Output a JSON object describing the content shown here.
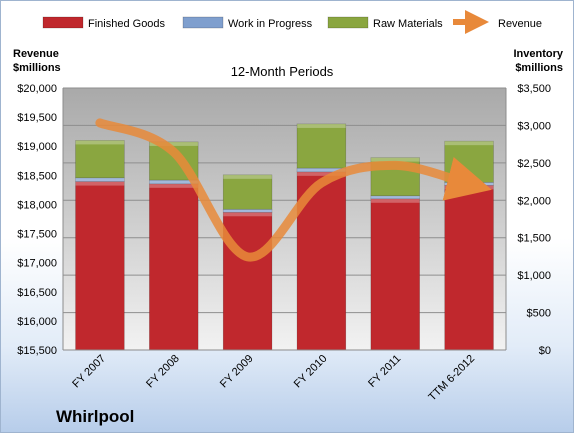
{
  "chart_data": {
    "type": "bar",
    "stacked": true,
    "title": "12-Month Periods",
    "company": "Whirlpool",
    "categories": [
      "FY 2007",
      "FY 2008",
      "FY 2009",
      "FY 2010",
      "FY 2011",
      "TTM 6-2012"
    ],
    "left_axis": {
      "label_line1": "Revenue",
      "label_line2": "$millions",
      "ylim": [
        15500,
        20000
      ],
      "ticks": [
        "$15,500",
        "$16,000",
        "$16,500",
        "$17,000",
        "$17,500",
        "$18,000",
        "$18,500",
        "$19,000",
        "$19,500",
        "$20,000"
      ]
    },
    "right_axis": {
      "label_line1": "Inventory",
      "label_line2": "$millions",
      "ylim": [
        0,
        3500
      ],
      "ticks": [
        "$0",
        "$500",
        "$1,000",
        "$1,500",
        "$2,000",
        "$2,500",
        "$3,000",
        "$3,500"
      ]
    },
    "series": [
      {
        "name": "Finished Goods",
        "axis": "right",
        "color": "#c0282d",
        "values": [
          2250,
          2220,
          1840,
          2380,
          2020,
          2200
        ]
      },
      {
        "name": "Work in Progress",
        "axis": "right",
        "color": "#7f9fce",
        "values": [
          50,
          50,
          40,
          50,
          40,
          40
        ]
      },
      {
        "name": "Raw Materials",
        "axis": "right",
        "color": "#8aa640",
        "values": [
          500,
          510,
          460,
          590,
          510,
          550
        ]
      },
      {
        "name": "Revenue",
        "axis": "left",
        "type": "line",
        "color": "#e8893a",
        "values": [
          19400,
          18900,
          17100,
          18370,
          18670,
          18350
        ]
      }
    ],
    "legend_position": "top",
    "grid": true
  }
}
